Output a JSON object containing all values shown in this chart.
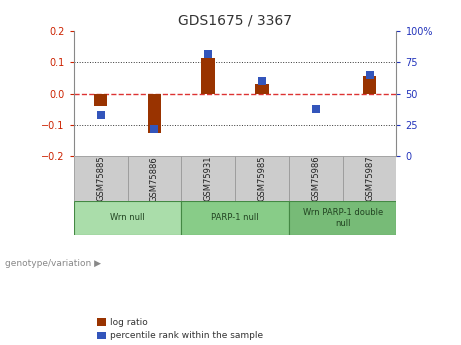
{
  "title": "GDS1675 / 3367",
  "samples": [
    "GSM75885",
    "GSM75886",
    "GSM75931",
    "GSM75985",
    "GSM75986",
    "GSM75987"
  ],
  "log_ratio": [
    -0.04,
    -0.125,
    0.115,
    0.03,
    0.0,
    0.055
  ],
  "percentile_rank": [
    33,
    22,
    82,
    60,
    38,
    65
  ],
  "groups": [
    {
      "label": "Wrn null",
      "start": 0,
      "end": 2,
      "color": "#aaddaa"
    },
    {
      "label": "PARP-1 null",
      "start": 2,
      "end": 4,
      "color": "#88cc88"
    },
    {
      "label": "Wrn PARP-1 double\nnull",
      "start": 4,
      "end": 6,
      "color": "#77bb77"
    }
  ],
  "ylim_left": [
    -0.2,
    0.2
  ],
  "ylim_right": [
    0,
    100
  ],
  "yticks_left": [
    -0.2,
    -0.1,
    0.0,
    0.1,
    0.2
  ],
  "yticks_right": [
    0,
    25,
    50,
    75,
    100
  ],
  "ytick_labels_right": [
    "0",
    "25",
    "50",
    "75",
    "100%"
  ],
  "bar_color": "#993300",
  "dot_color": "#3355bb",
  "zero_line_color": "#dd3333",
  "grid_color": "#333333",
  "bg_color": "#ffffff",
  "plot_bg": "#ffffff",
  "legend_log_ratio": "log ratio",
  "legend_percentile": "percentile rank within the sample",
  "genotype_label": "genotype/variation",
  "bar_width": 0.25,
  "dot_size": 40,
  "sample_cell_color": "#cccccc",
  "title_color": "#333333",
  "left_tick_color": "#cc2200",
  "right_tick_color": "#2233bb"
}
